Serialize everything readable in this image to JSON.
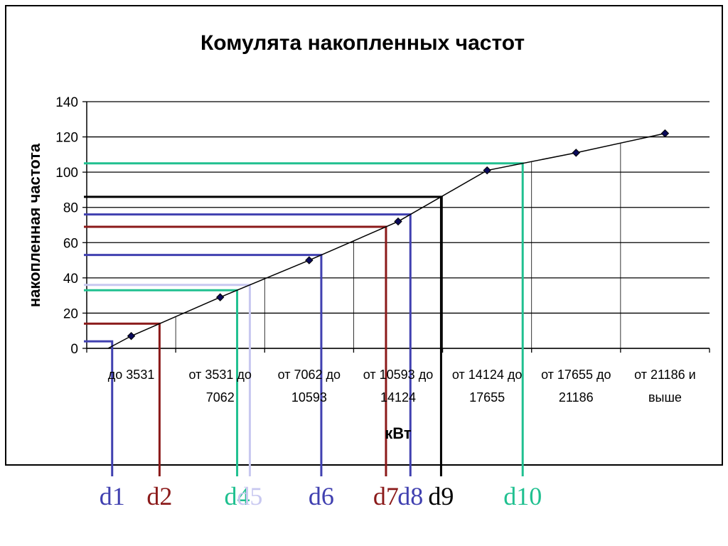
{
  "chart_data": {
    "type": "line",
    "title": "Комулята накопленных частот",
    "xlabel": "кВт",
    "ylabel": "накопленная частота",
    "ylim": [
      0,
      140
    ],
    "yticks": [
      0,
      20,
      40,
      60,
      80,
      100,
      120,
      140
    ],
    "grid": "horizontal",
    "categories": [
      [
        "до 3531"
      ],
      [
        "от 3531 до",
        "7062"
      ],
      [
        "от 7062 до",
        "10593"
      ],
      [
        "от 10593 до",
        "14124"
      ],
      [
        "от 14124 до",
        "17655"
      ],
      [
        "от 17655 до",
        "21186"
      ],
      [
        "от 21186 и",
        "выше"
      ]
    ],
    "series": [
      {
        "values": [
          7,
          29,
          50,
          72,
          101,
          111,
          122
        ],
        "color": "#000000"
      }
    ],
    "markers": [
      {
        "label": "d1",
        "color": "#4040b0",
        "y": 4
      },
      {
        "label": "d2",
        "color": "#8b1a1a",
        "y": 14
      },
      {
        "label": "d4",
        "color": "#20c090",
        "y": 33
      },
      {
        "label": "d5",
        "color": "#c8c8f0",
        "y": 36
      },
      {
        "label": "d6",
        "color": "#4040b0",
        "y": 53
      },
      {
        "label": "d7",
        "color": "#8b1a1a",
        "y": 69
      },
      {
        "label": "d8",
        "color": "#4040b0",
        "y": 76
      },
      {
        "label": "d9",
        "color": "#000000",
        "y": 86
      },
      {
        "label": "d10",
        "color": "#20c090",
        "y": 105
      }
    ]
  }
}
